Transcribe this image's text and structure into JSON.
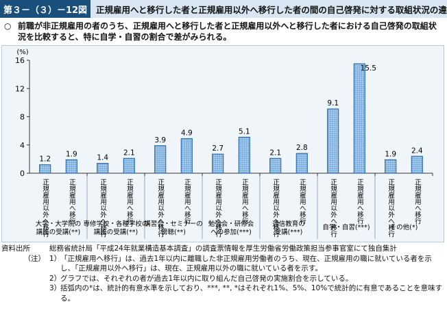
{
  "header": {
    "figure_number": "第３－（３）－12図",
    "title": "正規雇用へと移行した者と正規雇用以外へ移行した者の間の自己啓発に対する取組状況の違い"
  },
  "summary": {
    "mark": "○",
    "text": "前職が非正規雇用の者のうち、正規雇用へと移行した者と正規雇用以外へと移行した者における自己啓発の取組状況を比較すると、特に自学・自習の割合で差がみられる。"
  },
  "chart_data": {
    "type": "bar",
    "unit_label": "(%)",
    "ylim": [
      0,
      16
    ],
    "yticks": [
      "0",
      "4",
      "8",
      "12",
      "16"
    ],
    "grid": false,
    "bar_color": "#2f6ca8",
    "bar_fill": "#7fb2e0",
    "series_labels": [
      "正規雇用以外へ移行",
      "正規雇用へ移行"
    ],
    "groups": [
      {
        "label": "大学・大学院の講座の受講(**)",
        "values": [
          1.2,
          1.9
        ],
        "value_labels": [
          "1.2",
          "1.9"
        ]
      },
      {
        "label": "専修学校・各種学校の講座の受講(**)",
        "values": [
          1.4,
          2.1
        ],
        "value_labels": [
          "1.4",
          "2.1"
        ]
      },
      {
        "label": "講習会・セミナーの傍聴(**)",
        "values": [
          3.9,
          4.9
        ],
        "value_labels": [
          "3.9",
          "4.9"
        ]
      },
      {
        "label": "勉強会・研修会への参加(***)",
        "values": [
          2.7,
          5.1
        ],
        "value_labels": [
          "2.7",
          "5.1"
        ]
      },
      {
        "label": "通信教育の受講(***)",
        "values": [
          2.1,
          2.8
        ],
        "value_labels": [
          "2.1",
          "2.8"
        ]
      },
      {
        "label": "自学・自習(***)",
        "values": [
          9.1,
          15.5
        ],
        "value_labels": [
          "9.1",
          "15.5"
        ]
      },
      {
        "label": "その他(*)",
        "values": [
          1.9,
          2.4
        ],
        "value_labels": [
          "1.9",
          "2.4"
        ]
      }
    ]
  },
  "sources": {
    "source_label": "資料出所",
    "source_text": "総務省統計局「平成24年就業構造基本調査」の調査票情報を厚生労働省労働政策担当参事官室にて独自集計",
    "notes_label": "（注）",
    "notes": [
      {
        "num": "1）",
        "text": "「正規雇用へ移行」は、過去1年以内に離職した非正規雇用労働者のうち、現在、正規雇用の職に就いている者を示し、「正規雇用以外へ移行」は、現在、正規雇用以外の職に就いている者を示す。"
      },
      {
        "num": "2）",
        "text": "グラフでは、それぞれの者が過去1年以内に取り組んだ自己啓発の実施割合を示している。"
      },
      {
        "num": "3）",
        "text": "括弧内の*は、統計的有意水準を示しており、***, **, *はそれぞれ1%、5%、10%で統計的に有意であることを意味する。"
      }
    ]
  }
}
